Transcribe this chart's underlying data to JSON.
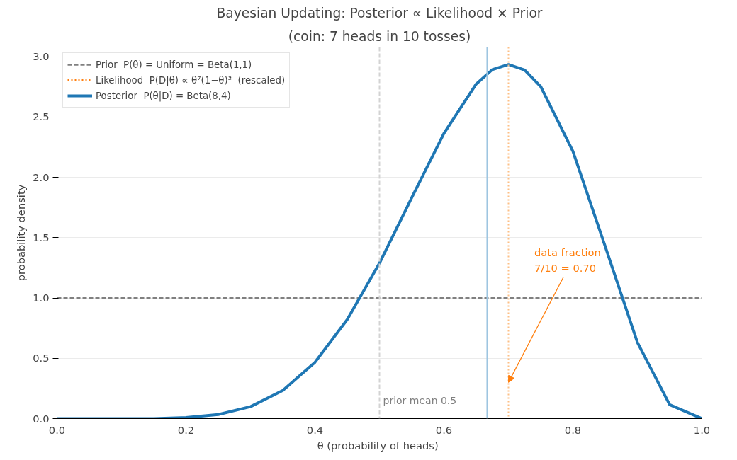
{
  "chart_data": {
    "type": "line",
    "title": "Bayesian Updating: Posterior ∝ Likelihood × Prior",
    "subtitle": "(coin: 7 heads in 10 tosses)",
    "xlabel": "θ  (probability of heads)",
    "ylabel": "probability density",
    "x": [
      0,
      0.05,
      0.1,
      0.15,
      0.2,
      0.25,
      0.3,
      0.35,
      0.4,
      0.45,
      0.5,
      0.55,
      0.6,
      0.65,
      0.675,
      0.7,
      0.725,
      0.75,
      0.8,
      0.85,
      0.9,
      0.95,
      1.0
    ],
    "series": [
      {
        "name": "Prior  P(θ) = Uniform = Beta(1,1)",
        "color": "#808080",
        "line_style": "dashed",
        "values": [
          1,
          1,
          1,
          1,
          1,
          1,
          1,
          1,
          1,
          1,
          1,
          1,
          1,
          1,
          1,
          1,
          1,
          1,
          1,
          1,
          1,
          1,
          1
        ]
      },
      {
        "name": "Likelihood  P(D|θ) ∝ θ⁷(1−θ)³  (rescaled)",
        "color": "#ff7f0e",
        "line_style": "dotted",
        "values": [
          null,
          null,
          null,
          null,
          null,
          null,
          null,
          null,
          null,
          null,
          null,
          null,
          null,
          null,
          null,
          null,
          null,
          null,
          null,
          null,
          null,
          null,
          null
        ]
      },
      {
        "name": "Posterior  P(θ|D) = Beta(8,4)",
        "color": "#1f77b4",
        "line_style": "solid",
        "values": [
          0,
          0,
          0,
          0,
          0.009,
          0.034,
          0.099,
          0.233,
          0.467,
          0.821,
          1.289,
          1.831,
          2.365,
          2.774,
          2.893,
          2.935,
          2.89,
          2.753,
          2.215,
          1.428,
          0.631,
          0.115,
          0
        ]
      }
    ],
    "ref_lines": [
      {
        "axis": "x",
        "value": 0.5,
        "color": "#d3d3d3",
        "line_style": "dashed"
      },
      {
        "axis": "x",
        "value": 0.667,
        "color": "#9ec5e0",
        "line_style": "solid"
      },
      {
        "axis": "x",
        "value": 0.7,
        "color": "#fdbf85",
        "line_style": "dotted"
      }
    ],
    "annotations": [
      {
        "text": "prior mean 0.5",
        "x": 0.5,
        "y": 0.1
      },
      {
        "text": "data fraction\n7/10 = 0.70",
        "x": 0.7,
        "y": 0.3
      }
    ],
    "xlim": [
      0,
      1
    ],
    "ylim": [
      0,
      3.08
    ],
    "xticks": [
      {
        "value": 0,
        "label": "0.0"
      },
      0.2,
      0.4,
      0.6,
      0.8,
      {
        "value": 1,
        "label": "1.0"
      }
    ],
    "yticks": [
      {
        "value": 0,
        "label": "0.0"
      },
      0.5,
      {
        "value": 1,
        "label": "1.0"
      },
      1.5,
      {
        "value": 2,
        "label": "2.0"
      },
      2.5,
      {
        "value": 3,
        "label": "3.0"
      }
    ],
    "grid": true,
    "legend": "top left"
  }
}
